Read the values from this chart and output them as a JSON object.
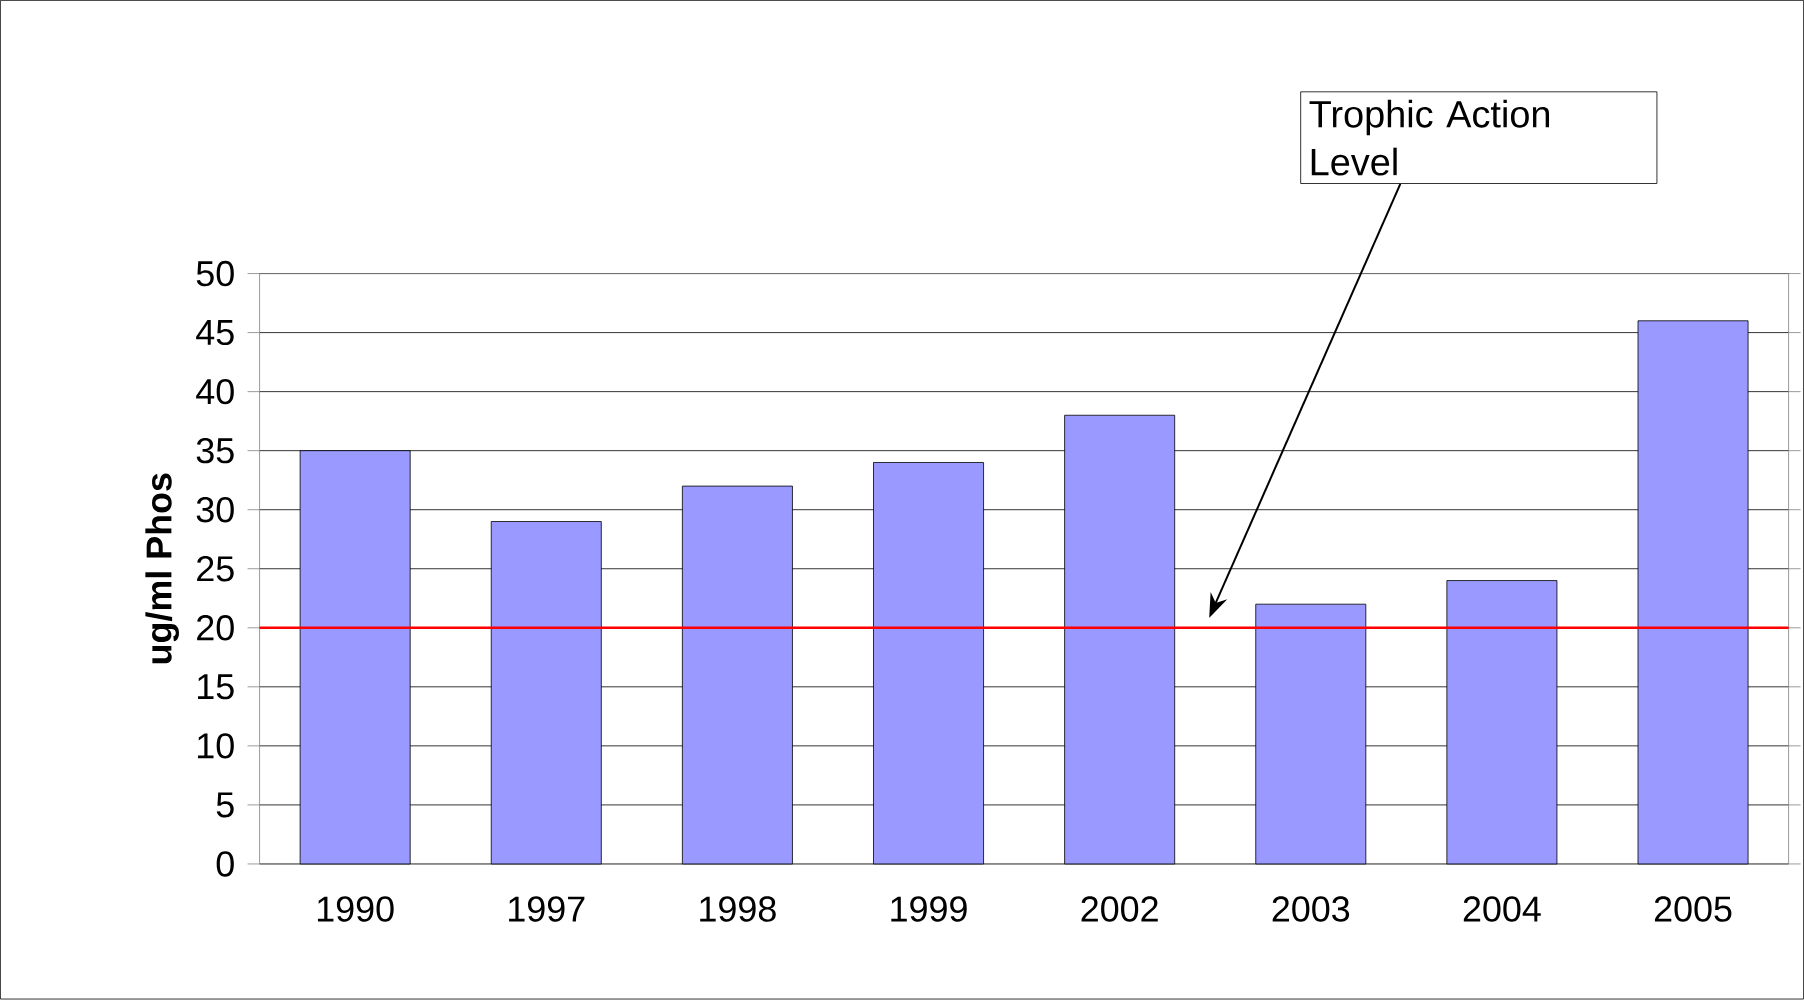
{
  "chart_data": {
    "type": "bar",
    "ylabel": "ug/ml Phos",
    "categories": [
      "1990",
      "1997",
      "1998",
      "1999",
      "2002",
      "2003",
      "2004",
      "2005"
    ],
    "values": [
      35,
      29,
      32,
      34,
      38,
      22,
      24,
      46
    ],
    "color": "#9999ff",
    "ylim": [
      0,
      50
    ],
    "yticks": [
      0,
      5,
      10,
      15,
      20,
      25,
      30,
      35,
      40,
      45,
      50
    ],
    "grid": "y",
    "ref_lines": [
      {
        "axis": "y",
        "value": 20,
        "color": "#ff0000"
      }
    ],
    "annotations": [
      "Trophic Action Level"
    ]
  }
}
